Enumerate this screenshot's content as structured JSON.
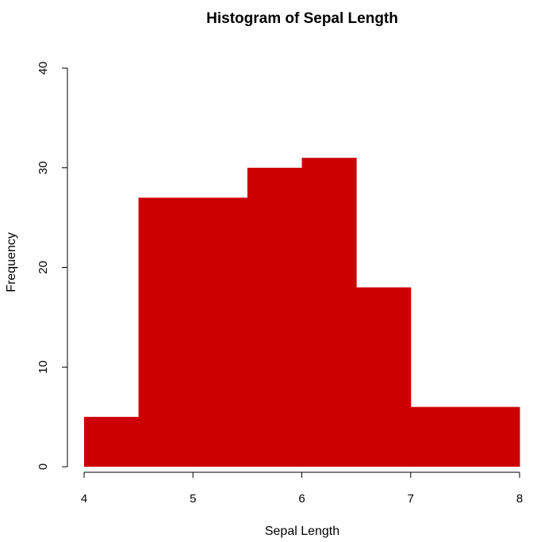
{
  "chart_data": {
    "type": "bar",
    "title": "Histogram of Sepal Length",
    "xlabel": "Sepal Length",
    "ylabel": "Frequency",
    "bins": [
      {
        "start": 4.0,
        "end": 4.5,
        "value": 5
      },
      {
        "start": 4.5,
        "end": 5.0,
        "value": 27
      },
      {
        "start": 5.0,
        "end": 5.5,
        "value": 27
      },
      {
        "start": 5.5,
        "end": 6.0,
        "value": 30
      },
      {
        "start": 6.0,
        "end": 6.5,
        "value": 31
      },
      {
        "start": 6.5,
        "end": 7.0,
        "value": 18
      },
      {
        "start": 7.0,
        "end": 7.5,
        "value": 6
      },
      {
        "start": 7.5,
        "end": 8.0,
        "value": 6
      }
    ],
    "xlim": [
      4,
      8
    ],
    "ylim": [
      0,
      40
    ],
    "xticks": [
      "4",
      "5",
      "6",
      "7",
      "8"
    ],
    "yticks": [
      "0",
      "10",
      "20",
      "30",
      "40"
    ],
    "bar_color": "#CC0000",
    "grid": false,
    "legend": "none"
  }
}
